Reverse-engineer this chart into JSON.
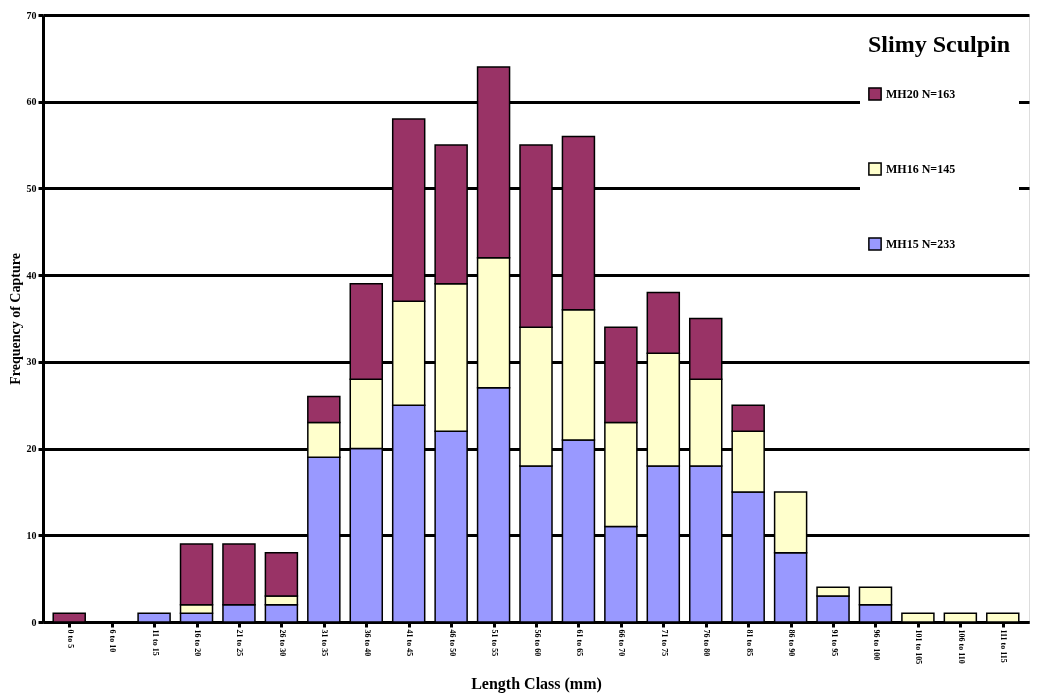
{
  "chart_data": {
    "type": "bar",
    "stacked": true,
    "legend_title": "Slimy Sculpin",
    "xlabel": "Length Class (mm)",
    "ylabel": "Frequency of Capture",
    "categories": [
      "0 to 5",
      "6 to 10",
      "11 to 15",
      "16 to 20",
      "21 to 25",
      "26 to 30",
      "31 to 35",
      "36 to 40",
      "41 to 45",
      "46 to 50",
      "51 to 55",
      "56 to 60",
      "61 to 65",
      "66 to 70",
      "71 to 75",
      "76 to 80",
      "81 to 85",
      "86 to 90",
      "91 to 95",
      "96 to 100",
      "101 to 105",
      "106 to 110",
      "111 to 115"
    ],
    "series": [
      {
        "name": "MH15 N=233",
        "color": "#9999ff",
        "values": [
          0,
          0,
          1,
          1,
          2,
          2,
          19,
          20,
          25,
          22,
          27,
          18,
          21,
          11,
          18,
          18,
          15,
          8,
          3,
          2,
          0,
          0,
          0
        ]
      },
      {
        "name": "MH16 N=145",
        "color": "#ffffcc",
        "values": [
          0,
          0,
          0,
          1,
          0,
          1,
          4,
          8,
          12,
          17,
          15,
          16,
          15,
          12,
          13,
          10,
          7,
          7,
          1,
          2,
          1,
          1,
          1
        ]
      },
      {
        "name": "MH20 N=163",
        "color": "#993366",
        "values": [
          1,
          0,
          0,
          7,
          7,
          5,
          3,
          11,
          21,
          16,
          22,
          21,
          20,
          11,
          7,
          7,
          3,
          0,
          0,
          0,
          0,
          0,
          0
        ]
      }
    ],
    "ylim": [
      0,
      70
    ],
    "yticks": [
      0,
      10,
      20,
      30,
      40,
      50,
      60,
      70
    ],
    "grid": "y",
    "legend": "top right"
  }
}
